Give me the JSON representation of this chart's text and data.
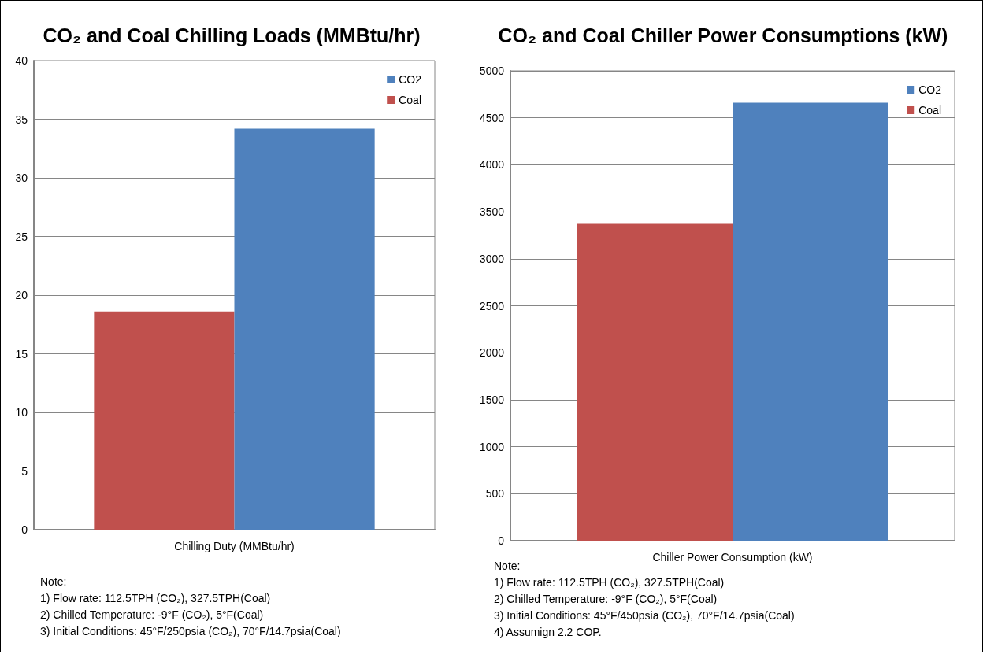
{
  "chart_data": [
    {
      "type": "bar",
      "title": "CO₂ and Coal Chilling Loads (MMBtu/hr)",
      "categories": [
        "Chilling Duty (MMBtu/hr)"
      ],
      "series": [
        {
          "name": "Coal",
          "color": "#c0504d",
          "values": [
            18.6
          ]
        },
        {
          "name": "CO2",
          "color": "#4f81bd",
          "values": [
            34.2
          ]
        }
      ],
      "ylim": [
        0,
        40
      ],
      "yticks": [
        0,
        5,
        10,
        15,
        20,
        25,
        30,
        35,
        40
      ],
      "grid": "y",
      "legend": "top right",
      "annotations": [
        "Note:",
        "1)  Flow rate: 112.5TPH (CO₂), 327.5TPH(Coal)",
        "2)  Chilled Temperature: -9°F (CO₂), 5°F(Coal)",
        "3)  Initial Conditions: 45°F/250psia (CO₂), 70°F/14.7psia(Coal)"
      ]
    },
    {
      "type": "bar",
      "title": "CO₂ and Coal Chiller Power Consumptions (kW)",
      "categories": [
        "Chiller Power Consumption (kW)"
      ],
      "series": [
        {
          "name": "Coal",
          "color": "#c0504d",
          "values": [
            3380
          ]
        },
        {
          "name": "CO2",
          "color": "#4f81bd",
          "values": [
            4660
          ]
        }
      ],
      "ylim": [
        0,
        5000
      ],
      "yticks": [
        0,
        500,
        1000,
        1500,
        2000,
        2500,
        3000,
        3500,
        4000,
        4500,
        5000
      ],
      "grid": "y",
      "legend": "top right",
      "annotations": [
        "Note:",
        "1)  Flow rate: 112.5TPH (CO₂), 327.5TPH(Coal)",
        "2)  Chilled Temperature: -9°F (CO₂), 5°F(Coal)",
        "3)  Initial Conditions: 45°F/450psia (CO₂), 70°F/14.7psia(Coal)",
        "4)  Assumign 2.2 COP."
      ]
    }
  ]
}
